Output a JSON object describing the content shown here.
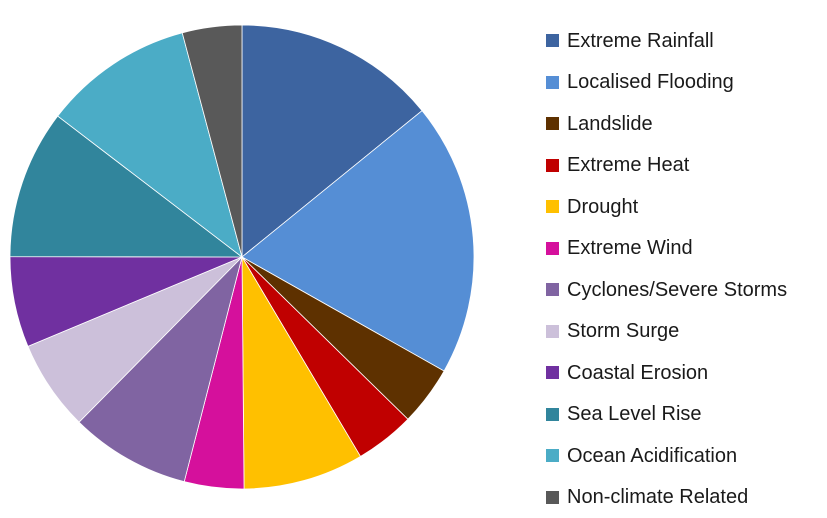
{
  "chart_data": {
    "type": "pie",
    "categories": [
      "Extreme Rainfall",
      "Localised Flooding",
      "Landslide",
      "Extreme Heat",
      "Drought",
      "Extreme Wind",
      "Cyclones/Severe Storms",
      "Storm Surge",
      "Coastal Erosion",
      "Sea Level Rise",
      "Ocean Acidification",
      "Non-climate Related"
    ],
    "values": [
      15.0,
      20.2,
      4.4,
      4.4,
      8.9,
      4.4,
      8.9,
      6.7,
      6.7,
      11.0,
      11.1,
      4.4
    ],
    "colors": [
      "#3d64a0",
      "#558ed5",
      "#5e3100",
      "#c00000",
      "#ffc000",
      "#d5109c",
      "#8064a2",
      "#ccc0da",
      "#7030a0",
      "#31859c",
      "#4bacc6",
      "#595959"
    ],
    "title": "",
    "legend_position": "right",
    "start_angle_deg": 0,
    "direction": "clockwise"
  }
}
